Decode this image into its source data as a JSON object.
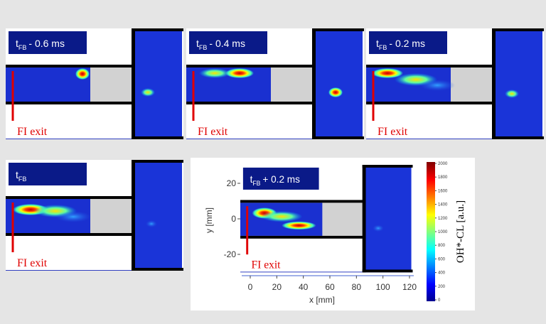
{
  "panels": [
    {
      "label": {
        "t": "t",
        "sub": "FB",
        "rest": "- 0.6 ms"
      },
      "exit": "FI exit"
    },
    {
      "label": {
        "t": "t",
        "sub": "FB",
        "rest": "- 0.4 ms"
      },
      "exit": "FI exit"
    },
    {
      "label": {
        "t": "t",
        "sub": "FB",
        "rest": "- 0.2 ms"
      },
      "exit": "FI exit"
    },
    {
      "label": {
        "t": "t",
        "sub": "FB"
      },
      "exit": "FI exit"
    },
    {
      "label": {
        "t": "t",
        "sub": "FB",
        "rest": "+ 0.2 ms"
      },
      "exit": "FI exit"
    }
  ],
  "axes": {
    "xlabel": "x [mm]",
    "ylabel": "y [mm]",
    "xticks": [
      0,
      20,
      40,
      60,
      80,
      100,
      120
    ],
    "yticks": [
      20,
      0,
      -20
    ]
  },
  "colorbar": {
    "label": "OH*-CL [a.u.]",
    "ticks": [
      0,
      200,
      400,
      600,
      800,
      1000,
      1200,
      1400,
      1600,
      1800,
      2000
    ]
  }
}
